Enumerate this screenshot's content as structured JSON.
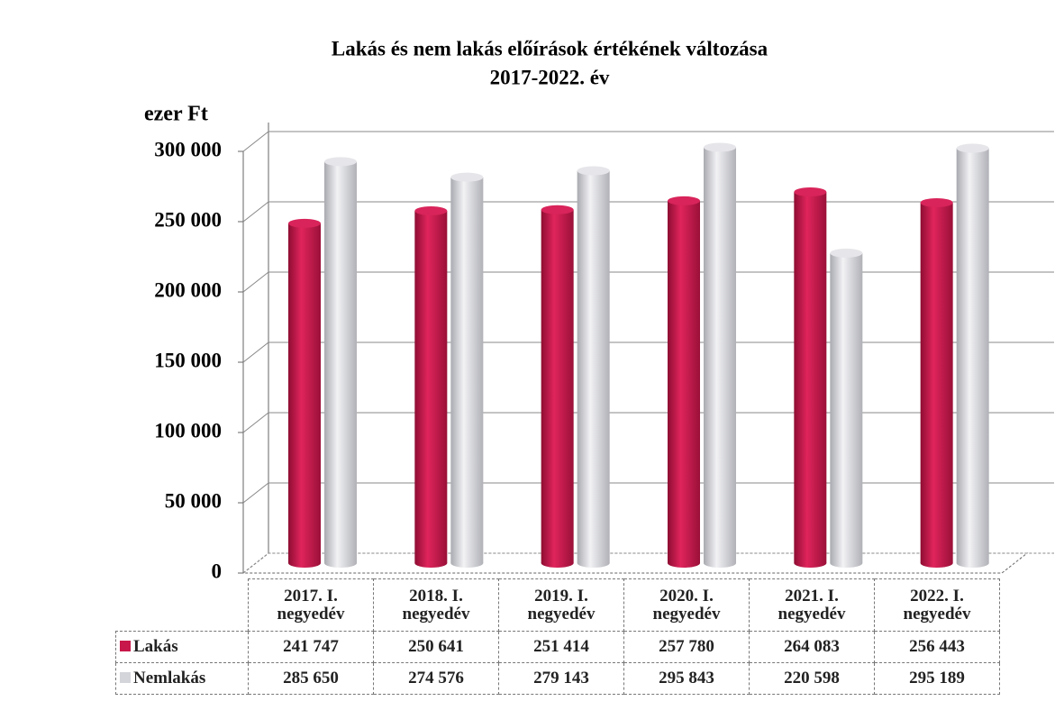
{
  "chart_data": {
    "type": "bar",
    "title": "Lakás és nem lakás előírások értékének változása",
    "subtitle": "2017-2022. év",
    "y_label": "ezer Ft",
    "categories": [
      "2017. I. negyedév",
      "2018. I. negyedév",
      "2019. I. negyedév",
      "2020. I. negyedév",
      "2021. I. negyedév",
      "2022. I. negyedév"
    ],
    "series": [
      {
        "name": "Lakás",
        "color": "#c8174a",
        "values": [
          241747,
          250641,
          251414,
          257780,
          264083,
          256443
        ],
        "value_labels": [
          "241 747",
          "250 641",
          "251 414",
          "257 780",
          "264 083",
          "256 443"
        ]
      },
      {
        "name": "Nemlakás",
        "color": "#d4d5da",
        "values": [
          285650,
          274576,
          279143,
          295843,
          220598,
          295189
        ],
        "value_labels": [
          "285 650",
          "274 576",
          "279 143",
          "295 843",
          "220 598",
          "295 189"
        ]
      }
    ],
    "ylim": [
      0,
      300000
    ],
    "yticks": [
      0,
      {
        "value": 50000,
        "label": "50 000"
      },
      {
        "value": 100000,
        "label": "100 000"
      },
      {
        "value": 150000,
        "label": "150 000"
      },
      {
        "value": 200000,
        "label": "200 000"
      },
      {
        "value": 250000,
        "label": "250 000"
      },
      {
        "value": 300000,
        "label": "300 000"
      }
    ],
    "grid": true
  }
}
